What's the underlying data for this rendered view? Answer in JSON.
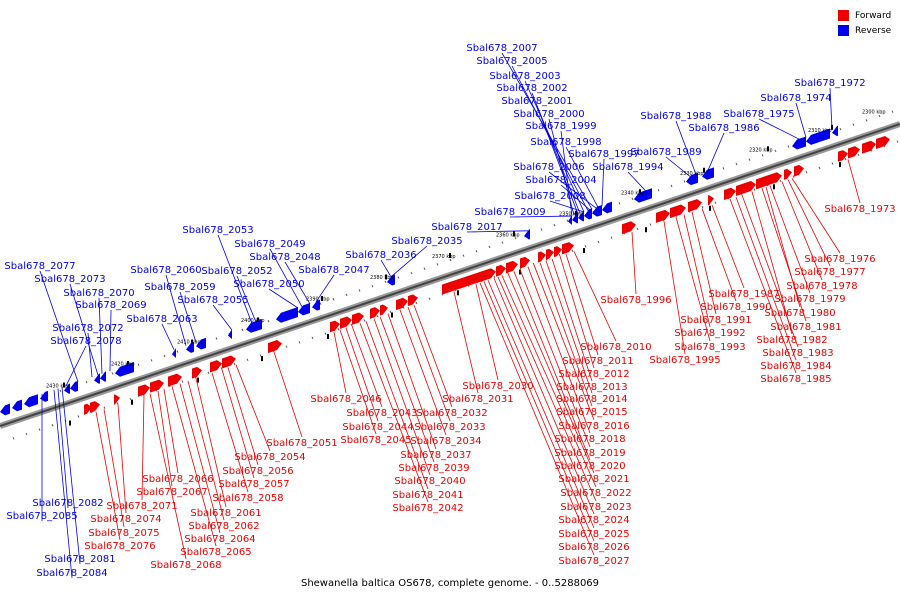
{
  "legend": {
    "forward": {
      "label": "Forward",
      "color": "#ee0000"
    },
    "reverse": {
      "label": "Reverse",
      "color": "#0000ee"
    }
  },
  "caption": "Shewanella baltica OS678, complete genome. - 0..5288069",
  "scale_labels": [
    "2300 kbp",
    "2310 kbp",
    "2320 kbp",
    "2330 kbp",
    "2340 kbp",
    "2350 kbp",
    "2360 kbp",
    "2370 kbp",
    "2380 kbp",
    "2390 kbp",
    "2400 kbp",
    "2410 kbp",
    "2420 kbp",
    "2430 kbp"
  ],
  "reverse_labels": [
    "Sbal678_2007",
    "Sbal678_2005",
    "Sbal678_2003",
    "Sbal678_2002",
    "Sbal678_2001",
    "Sbal678_2000",
    "Sbal678_1999",
    "Sbal678_1998",
    "Sbal678_1997",
    "Sbal678_2006",
    "Sbal678_2004",
    "Sbal678_2008",
    "Sbal678_2009",
    "Sbal678_2017",
    "Sbal678_2035",
    "Sbal678_2036",
    "Sbal678_2053",
    "Sbal678_2049",
    "Sbal678_2048",
    "Sbal678_2047",
    "Sbal678_2060",
    "Sbal678_2052",
    "Sbal678_2059",
    "Sbal678_2050",
    "Sbal678_2055",
    "Sbal678_2063",
    "Sbal678_2077",
    "Sbal678_2073",
    "Sbal678_2070",
    "Sbal678_2069",
    "Sbal678_2072",
    "Sbal678_2078",
    "Sbal678_1972",
    "Sbal678_1974",
    "Sbal678_1975",
    "Sbal678_1988",
    "Sbal678_1986",
    "Sbal678_1989",
    "Sbal678_1994",
    "Sbal678_2082",
    "Sbal678_2085",
    "Sbal678_2081",
    "Sbal678_2084"
  ],
  "forward_labels": [
    "Sbal678_1973",
    "Sbal678_1976",
    "Sbal678_1977",
    "Sbal678_1978",
    "Sbal678_1979",
    "Sbal678_1980",
    "Sbal678_1981",
    "Sbal678_1982",
    "Sbal678_1983",
    "Sbal678_1984",
    "Sbal678_1985",
    "Sbal678_1987",
    "Sbal678_1990",
    "Sbal678_1991",
    "Sbal678_1992",
    "Sbal678_1993",
    "Sbal678_1995",
    "Sbal678_1996",
    "Sbal678_2010",
    "Sbal678_2011",
    "Sbal678_2012",
    "Sbal678_2013",
    "Sbal678_2014",
    "Sbal678_2015",
    "Sbal678_2016",
    "Sbal678_2018",
    "Sbal678_2019",
    "Sbal678_2020",
    "Sbal678_2021",
    "Sbal678_2022",
    "Sbal678_2023",
    "Sbal678_2024",
    "Sbal678_2025",
    "Sbal678_2026",
    "Sbal678_2027",
    "Sbal678_2030",
    "Sbal678_2031",
    "Sbal678_2032",
    "Sbal678_2033",
    "Sbal678_2034",
    "Sbal678_2037",
    "Sbal678_2039",
    "Sbal678_2040",
    "Sbal678_2041",
    "Sbal678_2042",
    "Sbal678_2043",
    "Sbal678_2044",
    "Sbal678_2045",
    "Sbal678_2046",
    "Sbal678_2051",
    "Sbal678_2054",
    "Sbal678_2056",
    "Sbal678_2057",
    "Sbal678_2058",
    "Sbal678_2061",
    "Sbal678_2062",
    "Sbal678_2064",
    "Sbal678_2065",
    "Sbal678_2066",
    "Sbal678_2067",
    "Sbal678_2068",
    "Sbal678_2071",
    "Sbal678_2074",
    "Sbal678_2075",
    "Sbal678_2076"
  ]
}
